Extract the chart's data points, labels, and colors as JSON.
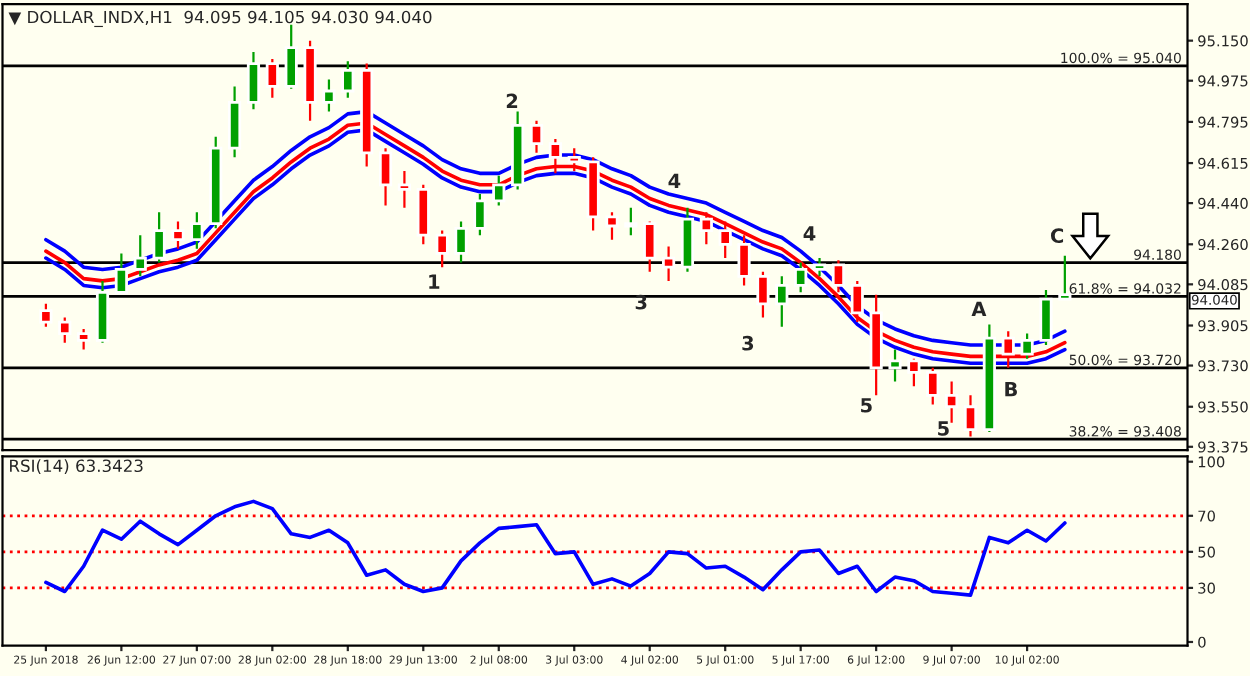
{
  "chart_data": [
    {
      "type": "candlestick",
      "title": "▼ DOLLAR_INDX,H1  94.095 94.105 94.030 94.040",
      "categories": [
        null,
        null,
        null,
        null,
        null,
        null,
        null,
        null,
        null,
        null,
        null,
        null,
        null,
        null,
        null,
        null,
        null,
        null,
        null,
        null,
        null,
        null,
        null,
        null,
        null,
        null,
        null,
        null,
        null,
        null,
        null,
        null,
        null,
        null,
        null,
        null,
        null,
        null,
        null,
        null,
        null,
        null,
        null,
        null,
        null,
        null,
        null,
        null,
        null,
        null,
        null,
        null,
        null,
        null,
        null
      ],
      "ohlc": [
        [
          93.97,
          94.0,
          93.9,
          93.92
        ],
        [
          93.92,
          93.94,
          93.83,
          93.87
        ],
        [
          93.87,
          93.89,
          93.8,
          93.84
        ],
        [
          93.84,
          94.1,
          93.83,
          94.05
        ],
        [
          94.05,
          94.22,
          94.05,
          94.15
        ],
        [
          94.15,
          94.3,
          94.12,
          94.2
        ],
        [
          94.2,
          94.4,
          94.18,
          94.32
        ],
        [
          94.32,
          94.36,
          94.24,
          94.28
        ],
        [
          94.28,
          94.4,
          94.24,
          94.35
        ],
        [
          94.35,
          94.73,
          94.33,
          94.68
        ],
        [
          94.68,
          94.95,
          94.64,
          94.88
        ],
        [
          94.88,
          95.1,
          94.85,
          95.05
        ],
        [
          95.05,
          95.07,
          94.9,
          94.95
        ],
        [
          94.95,
          95.22,
          94.94,
          95.12
        ],
        [
          95.12,
          95.15,
          94.8,
          94.88
        ],
        [
          94.88,
          94.98,
          94.84,
          94.93
        ],
        [
          94.93,
          95.06,
          94.9,
          95.02
        ],
        [
          95.02,
          95.05,
          94.6,
          94.66
        ],
        [
          94.66,
          94.68,
          94.43,
          94.52
        ],
        [
          94.52,
          94.58,
          94.42,
          94.5
        ],
        [
          94.5,
          94.52,
          94.26,
          94.3
        ],
        [
          94.3,
          94.32,
          94.16,
          94.22
        ],
        [
          94.22,
          94.36,
          94.18,
          94.33
        ],
        [
          94.33,
          94.48,
          94.3,
          94.45
        ],
        [
          94.45,
          94.56,
          94.43,
          94.52
        ],
        [
          94.52,
          94.84,
          94.5,
          94.78
        ],
        [
          94.78,
          94.8,
          94.66,
          94.7
        ],
        [
          94.7,
          94.72,
          94.57,
          94.64
        ],
        [
          94.64,
          94.68,
          94.58,
          94.62
        ],
        [
          94.62,
          94.64,
          94.32,
          94.38
        ],
        [
          94.38,
          94.4,
          94.28,
          94.34
        ],
        [
          94.34,
          94.42,
          94.3,
          94.35
        ],
        [
          94.35,
          94.36,
          94.14,
          94.2
        ],
        [
          94.2,
          94.25,
          94.1,
          94.16
        ],
        [
          94.16,
          94.42,
          94.14,
          94.37
        ],
        [
          94.37,
          94.4,
          94.26,
          94.32
        ],
        [
          94.32,
          94.36,
          94.2,
          94.26
        ],
        [
          94.26,
          94.3,
          94.08,
          94.12
        ],
        [
          94.12,
          94.14,
          93.94,
          94.0
        ],
        [
          94.0,
          94.12,
          93.9,
          94.08
        ],
        [
          94.08,
          94.18,
          94.05,
          94.15
        ],
        [
          94.15,
          94.2,
          94.12,
          94.17
        ],
        [
          94.17,
          94.19,
          94.05,
          94.08
        ],
        [
          94.08,
          94.1,
          93.92,
          93.96
        ],
        [
          93.96,
          94.04,
          93.6,
          93.72
        ],
        [
          93.72,
          93.8,
          93.66,
          93.75
        ],
        [
          93.75,
          93.76,
          93.64,
          93.7
        ],
        [
          93.7,
          93.72,
          93.56,
          93.6
        ],
        [
          93.6,
          93.66,
          93.48,
          93.55
        ],
        [
          93.55,
          93.6,
          93.42,
          93.45
        ],
        [
          93.45,
          93.91,
          93.44,
          93.85
        ],
        [
          93.85,
          93.88,
          93.72,
          93.78
        ],
        [
          93.78,
          93.87,
          93.76,
          93.84
        ],
        [
          93.84,
          94.06,
          93.82,
          94.02
        ],
        [
          94.02,
          94.21,
          94.02,
          94.04
        ]
      ],
      "series": [
        {
          "type": "line",
          "color": "#ff0000",
          "values": [
            94.23,
            94.18,
            94.11,
            94.1,
            94.11,
            94.14,
            94.17,
            94.19,
            94.22,
            94.31,
            94.4,
            94.49,
            94.55,
            94.62,
            94.68,
            94.72,
            94.78,
            94.79,
            94.74,
            94.69,
            94.64,
            94.58,
            94.54,
            94.52,
            94.52,
            94.56,
            94.59,
            94.6,
            94.6,
            94.58,
            94.54,
            94.51,
            94.46,
            94.43,
            94.41,
            94.39,
            94.35,
            94.31,
            94.27,
            94.24,
            94.18,
            94.11,
            94.03,
            93.94,
            93.88,
            93.84,
            93.81,
            93.79,
            93.78,
            93.77,
            93.77,
            93.77,
            93.77,
            93.79,
            93.83
          ]
        },
        {
          "type": "line",
          "color": "#0000ff",
          "values": [
            94.28,
            94.23,
            94.16,
            94.15,
            94.16,
            94.19,
            94.22,
            94.24,
            94.27,
            94.36,
            94.45,
            94.54,
            94.6,
            94.67,
            94.73,
            94.77,
            94.83,
            94.84,
            94.79,
            94.74,
            94.69,
            94.63,
            94.59,
            94.57,
            94.57,
            94.61,
            94.64,
            94.65,
            94.65,
            94.63,
            94.59,
            94.56,
            94.51,
            94.48,
            94.46,
            94.44,
            94.4,
            94.36,
            94.32,
            94.29,
            94.23,
            94.16,
            94.08,
            93.99,
            93.93,
            93.89,
            93.86,
            93.84,
            93.83,
            93.82,
            93.82,
            93.82,
            93.82,
            93.84,
            93.88
          ]
        },
        {
          "type": "line",
          "color": "#0000ff",
          "values": [
            94.2,
            94.15,
            94.08,
            94.07,
            94.08,
            94.11,
            94.14,
            94.16,
            94.19,
            94.28,
            94.37,
            94.46,
            94.52,
            94.59,
            94.65,
            94.69,
            94.75,
            94.76,
            94.71,
            94.66,
            94.61,
            94.55,
            94.51,
            94.49,
            94.49,
            94.53,
            94.56,
            94.57,
            94.57,
            94.55,
            94.51,
            94.48,
            94.43,
            94.4,
            94.38,
            94.36,
            94.32,
            94.28,
            94.24,
            94.21,
            94.15,
            94.08,
            94.0,
            93.91,
            93.85,
            93.81,
            93.78,
            93.76,
            93.75,
            93.74,
            93.74,
            93.74,
            93.74,
            93.76,
            93.8
          ]
        }
      ],
      "ylim": [
        93.36,
        95.31
      ],
      "yticks": [
        {
          "value": 93.375,
          "label": "93.375"
        },
        {
          "value": 93.55,
          "label": "93.550"
        },
        {
          "value": 93.73,
          "label": "93.730"
        },
        {
          "value": 93.905,
          "label": "93.905"
        },
        {
          "value": 94.085,
          "label": "94.085"
        },
        {
          "value": 94.26,
          "label": "94.260"
        },
        {
          "value": 94.44,
          "label": "94.440"
        },
        {
          "value": 94.615,
          "label": "94.615"
        },
        {
          "value": 94.795,
          "label": "94.795"
        },
        {
          "value": 94.975,
          "label": "94.975"
        },
        {
          "value": 95.15,
          "label": "95.150"
        }
      ],
      "tick_labels": "y",
      "ref_lines": [
        {
          "axis": "y",
          "value": 95.04,
          "label": "100.0% = 95.040",
          "color": "#000000"
        },
        {
          "axis": "y",
          "value": 94.18,
          "label": "94.180",
          "color": "#000000"
        },
        {
          "axis": "y",
          "value": 94.032,
          "label": "61.8% = 94.032",
          "color": "#000000"
        },
        {
          "axis": "y",
          "value": 93.72,
          "label": "50.0% = 93.720",
          "color": "#000000"
        },
        {
          "axis": "y",
          "value": 93.408,
          "label": "38.2% = 93.408",
          "color": "#000000"
        }
      ],
      "annotations": [
        "1",
        "2",
        "3",
        "4",
        "3",
        "4",
        "5",
        "5",
        "A",
        "B",
        "C",
        "94.040"
      ]
    },
    {
      "type": "line",
      "title": "RSI(14) 63.3423",
      "categories": [
        "25 Jun 2018",
        null,
        null,
        null,
        "26 Jun 12:00",
        null,
        null,
        null,
        "27 Jun 07:00",
        null,
        null,
        null,
        "28 Jun 02:00",
        null,
        null,
        null,
        "28 Jun 18:00",
        null,
        null,
        null,
        "29 Jun 13:00",
        null,
        null,
        null,
        "2 Jul 08:00",
        null,
        null,
        null,
        "3 Jul 03:00",
        null,
        null,
        null,
        "4 Jul 02:00",
        null,
        null,
        null,
        "5 Jul 01:00",
        null,
        null,
        null,
        "5 Jul 17:00",
        null,
        null,
        null,
        "6 Jul 12:00",
        null,
        null,
        null,
        "9 Jul 07:00",
        null,
        null,
        null,
        "10 Jul 02:00",
        null,
        null
      ],
      "series": [
        {
          "color": "#0000ff",
          "values": [
            33,
            28,
            42,
            62,
            57,
            67,
            60,
            54,
            62,
            70,
            75,
            78,
            74,
            60,
            58,
            62,
            55,
            37,
            40,
            32,
            28,
            30,
            45,
            55,
            63,
            64,
            65,
            49,
            50,
            32,
            35,
            31,
            38,
            50,
            49,
            41,
            42,
            36,
            29,
            40,
            50,
            51,
            38,
            42,
            28,
            36,
            34,
            28,
            27,
            26,
            58,
            55,
            62,
            56,
            66
          ]
        }
      ],
      "ylim": [
        -2,
        103
      ],
      "yticks": [
        0,
        30,
        50,
        70,
        100
      ],
      "ref_lines": [
        {
          "axis": "y",
          "value": 30,
          "color": "#ff0000",
          "line_style": "dotted"
        },
        {
          "axis": "y",
          "value": 50,
          "color": "#ff0000",
          "line_style": "dotted"
        },
        {
          "axis": "y",
          "value": 70,
          "color": "#ff0000",
          "line_style": "dotted"
        }
      ]
    }
  ]
}
